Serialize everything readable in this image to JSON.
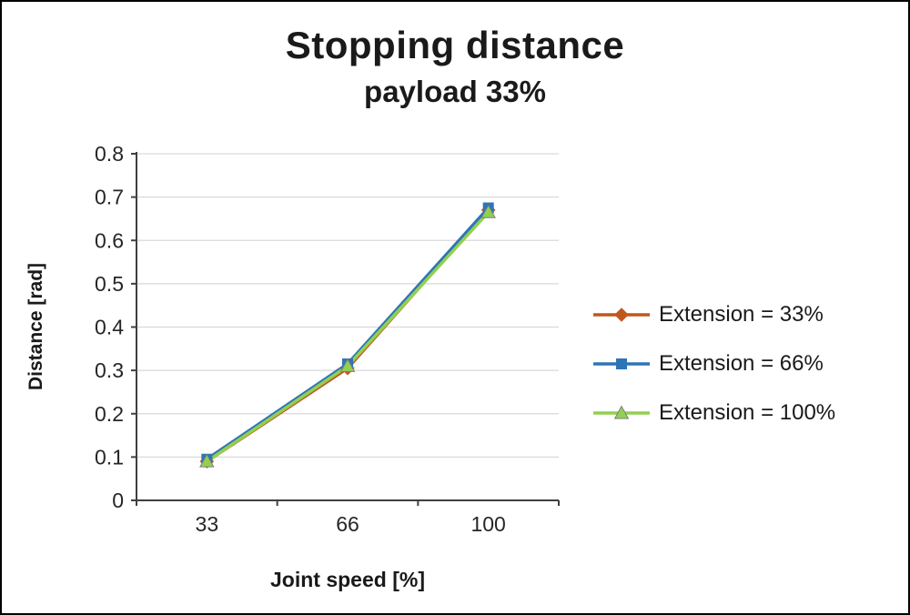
{
  "page": {
    "background_color": "#ffffff",
    "border_color": "#000000"
  },
  "chart_data": {
    "type": "line",
    "title": "Stopping distance",
    "subtitle": "payload 33%",
    "xlabel": "Joint speed [%]",
    "ylabel": "Distance [rad]",
    "categories": [
      "33",
      "66",
      "100"
    ],
    "ytick_labels": [
      "0",
      "0.1",
      "0.2",
      "0.3",
      "0.4",
      "0.5",
      "0.6",
      "0.7",
      "0.8"
    ],
    "yticks": [
      0,
      0.1,
      0.2,
      0.3,
      0.4,
      0.5,
      0.6,
      0.7,
      0.8
    ],
    "ylim": [
      0,
      0.8
    ],
    "grid": true,
    "legend_position": "right",
    "gridline_color": "#d9d9d9",
    "axis_color": "#404040",
    "tick_label_color": "#262626",
    "series": [
      {
        "name": "Extension = 33%",
        "color": "#c0571c",
        "marker": "diamond",
        "values": [
          0.09,
          0.305,
          0.67
        ]
      },
      {
        "name": "Extension = 66%",
        "color": "#2e75b6",
        "marker": "square",
        "values": [
          0.095,
          0.315,
          0.675
        ]
      },
      {
        "name": "Extension = 100%",
        "color": "#92d050",
        "marker": "triangle",
        "values": [
          0.09,
          0.31,
          0.665
        ]
      }
    ]
  }
}
